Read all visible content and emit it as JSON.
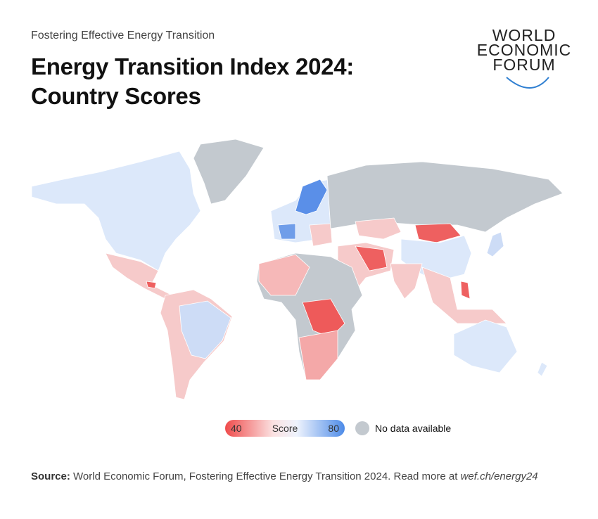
{
  "header": {
    "subtitle": "Fostering Effective Energy Transition",
    "title": "Energy Transition Index 2024: Country Scores",
    "logo": [
      "WORLD",
      "ECONOMIC",
      "FORUM"
    ]
  },
  "legend": {
    "min": 40,
    "label": "Score",
    "max": 80,
    "no_data": "No data available"
  },
  "footer": {
    "source_label": "Source:",
    "source_text": "World Economic Forum, Fostering Effective Energy Transition 2024. Read more at",
    "link": "wef.ch/energy24"
  }
}
